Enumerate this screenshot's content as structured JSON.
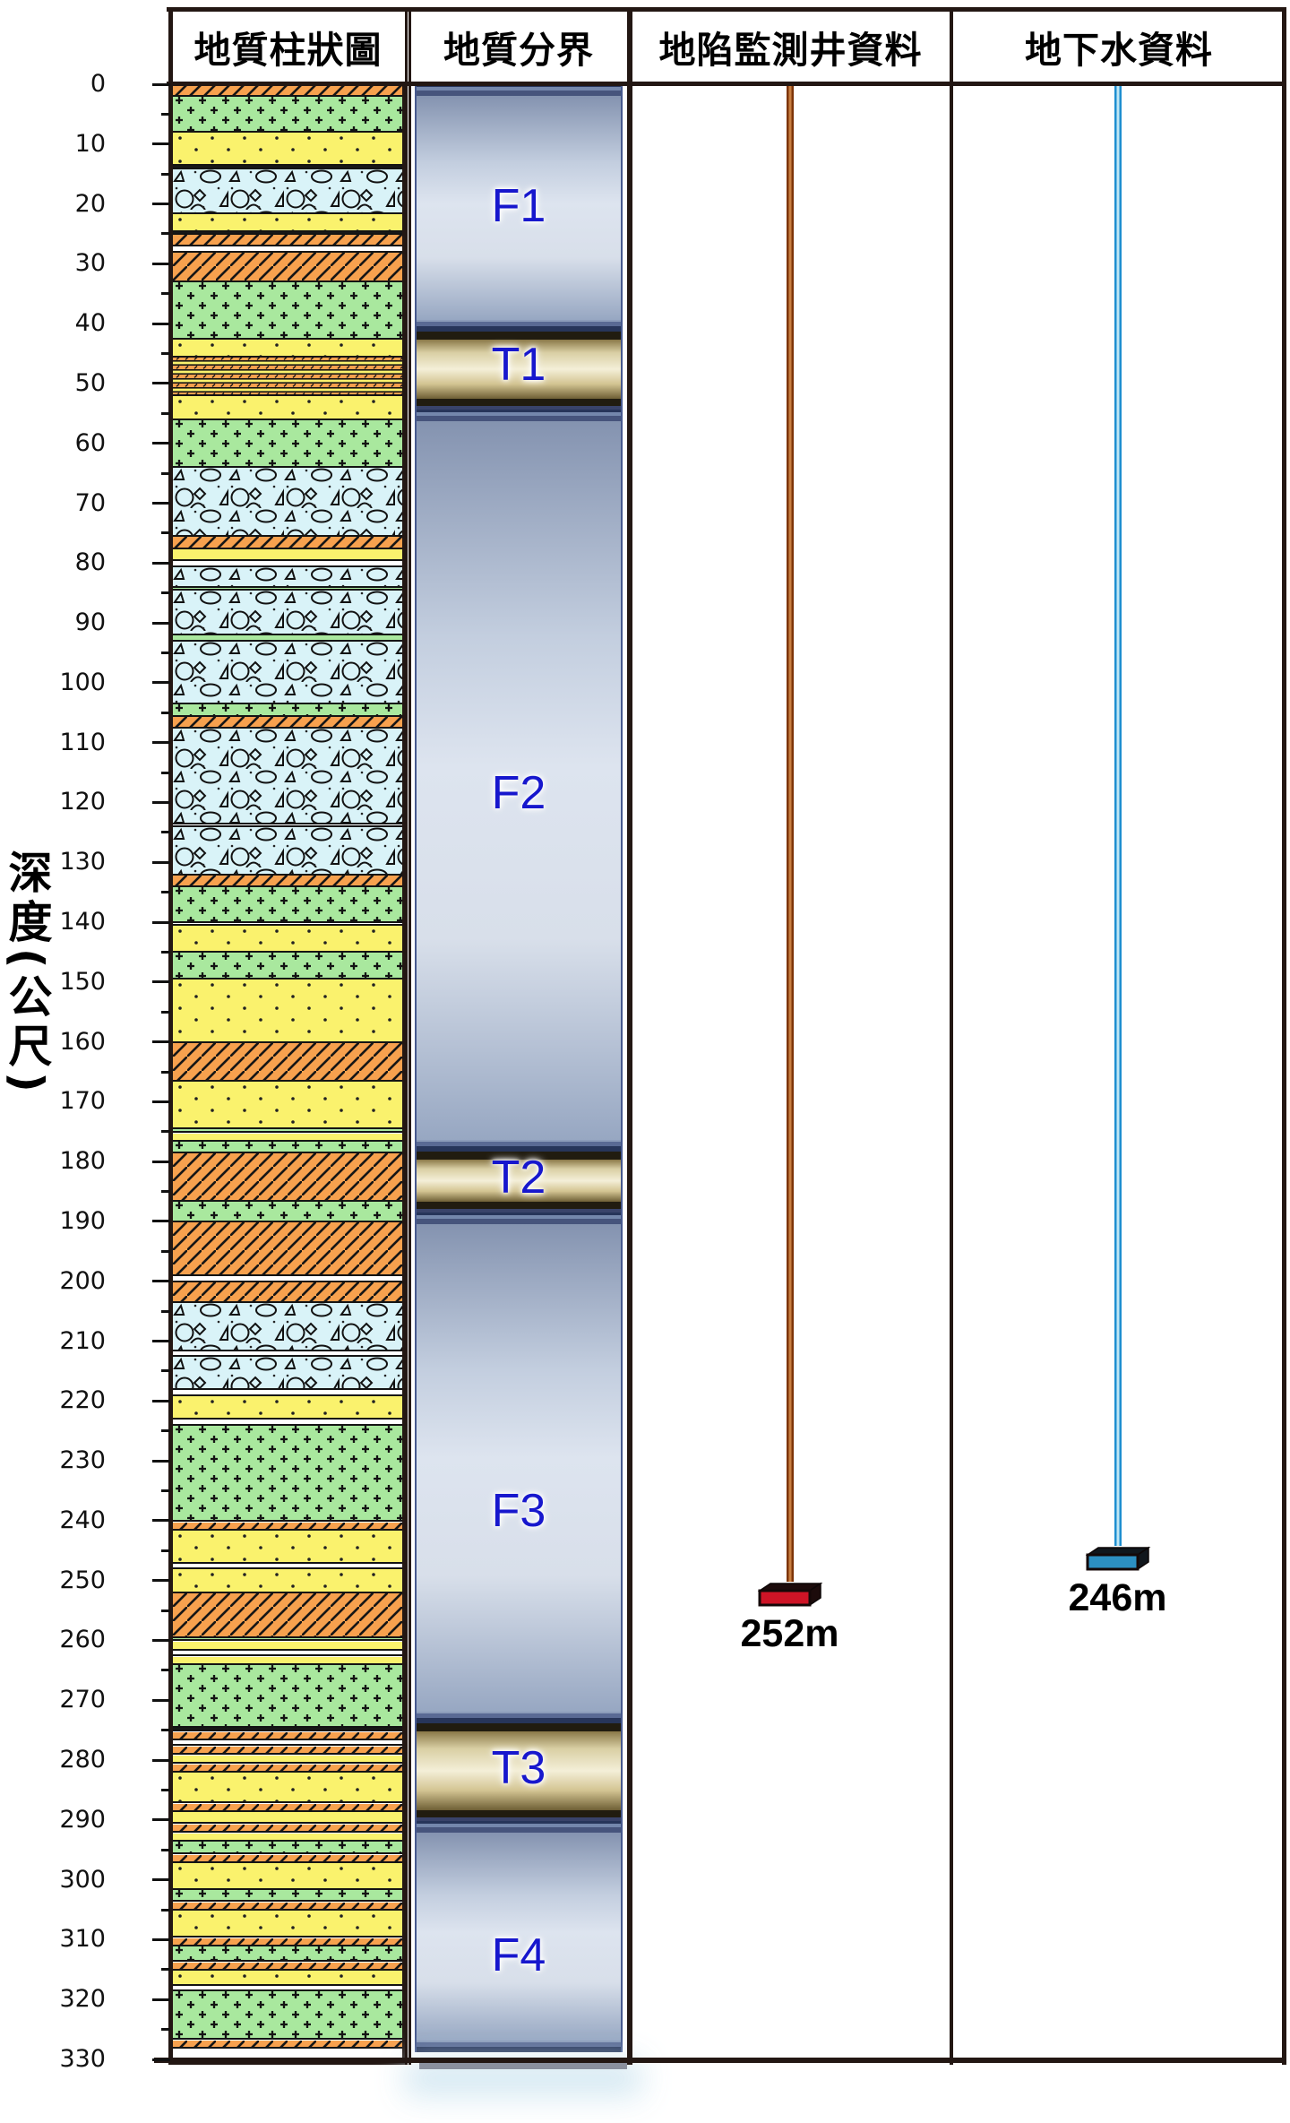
{
  "figure": {
    "kind": "geological-column-with-wells",
    "depth_top_m": 0,
    "depth_bottom_m": 330
  },
  "header": {
    "cells": [
      {
        "label": "地質柱狀圖"
      },
      {
        "label": "地質分界"
      },
      {
        "label": "地陷監測井資料"
      },
      {
        "label": "地下水資料"
      }
    ]
  },
  "axis": {
    "title": "深度(公尺)",
    "min": 0,
    "max": 330,
    "major_step": 10,
    "minor_step": 5,
    "tick_labels": [
      "0",
      "10",
      "20",
      "30",
      "40",
      "50",
      "60",
      "70",
      "80",
      "90",
      "100",
      "110",
      "120",
      "130",
      "140",
      "150",
      "160",
      "170",
      "180",
      "190",
      "200",
      "210",
      "220",
      "230",
      "240",
      "250",
      "260",
      "270",
      "280",
      "290",
      "300",
      "310",
      "320",
      "330"
    ]
  },
  "lithology": {
    "pattern_types": {
      "orange": "orange-diagonal-hatch",
      "green": "green-plus-marks",
      "ydots": "yellow-dotted-sand",
      "yellow": "yellow-plain",
      "gravel": "pale-blue-gravel-cobbles",
      "interbed": "thin-orange-yellow-interbeds",
      "dark": "black-line-bed",
      "empty": "blank"
    },
    "layers": [
      [
        0,
        2,
        "orange"
      ],
      [
        2,
        8,
        "green"
      ],
      [
        8,
        13.5,
        "ydots"
      ],
      [
        13.5,
        14,
        "dark"
      ],
      [
        14,
        21.5,
        "gravel"
      ],
      [
        21.5,
        24.5,
        "ydots"
      ],
      [
        24.5,
        25,
        "dark"
      ],
      [
        25,
        27,
        "orange"
      ],
      [
        27,
        28,
        "yellow"
      ],
      [
        28,
        33,
        "orange"
      ],
      [
        33,
        42.5,
        "green"
      ],
      [
        42.5,
        45.5,
        "ydots"
      ],
      [
        45.5,
        52,
        "interbed"
      ],
      [
        52,
        56,
        "ydots"
      ],
      [
        56,
        64,
        "green"
      ],
      [
        64,
        75.5,
        "gravel"
      ],
      [
        75.5,
        77.5,
        "orange"
      ],
      [
        77.5,
        79.5,
        "yellow"
      ],
      [
        79.5,
        80.5,
        "orange"
      ],
      [
        80.5,
        84,
        "gravel"
      ],
      [
        84,
        84.5,
        "green"
      ],
      [
        84.5,
        92,
        "gravel"
      ],
      [
        92,
        93,
        "green"
      ],
      [
        93,
        103.5,
        "gravel"
      ],
      [
        103.5,
        105.5,
        "green"
      ],
      [
        105.5,
        107.5,
        "orange"
      ],
      [
        107.5,
        123.5,
        "gravel"
      ],
      [
        123.5,
        124,
        "orange"
      ],
      [
        124,
        132,
        "gravel"
      ],
      [
        132,
        134,
        "orange"
      ],
      [
        134,
        140,
        "green"
      ],
      [
        140,
        140.5,
        "orange"
      ],
      [
        140.5,
        145,
        "ydots"
      ],
      [
        145,
        149.5,
        "green"
      ],
      [
        149.5,
        160,
        "ydots"
      ],
      [
        160,
        166.5,
        "orange"
      ],
      [
        166.5,
        174.5,
        "ydots"
      ],
      [
        174.5,
        175,
        "green"
      ],
      [
        175,
        176.5,
        "yellow"
      ],
      [
        176.5,
        178.5,
        "green"
      ],
      [
        178.5,
        186.5,
        "orange"
      ],
      [
        186.5,
        190,
        "green"
      ],
      [
        190,
        199,
        "orange"
      ],
      [
        199,
        200,
        "yellow"
      ],
      [
        200,
        203.5,
        "orange"
      ],
      [
        203.5,
        211.5,
        "gravel"
      ],
      [
        211.5,
        212.5,
        "yellow"
      ],
      [
        212.5,
        218,
        "gravel"
      ],
      [
        218,
        219,
        "orange"
      ],
      [
        219,
        223,
        "ydots"
      ],
      [
        223,
        224,
        "orange"
      ],
      [
        224,
        240,
        "green"
      ],
      [
        240,
        241.5,
        "orange"
      ],
      [
        241.5,
        247,
        "ydots"
      ],
      [
        247,
        248,
        "orange"
      ],
      [
        248,
        252,
        "ydots"
      ],
      [
        252,
        259.5,
        "orange"
      ],
      [
        259.5,
        260,
        "green"
      ],
      [
        260,
        261.5,
        "yellow"
      ],
      [
        261.5,
        262.5,
        "interbed"
      ],
      [
        262.5,
        264,
        "yellow"
      ],
      [
        264,
        274.5,
        "green"
      ],
      [
        274.5,
        275,
        "dark"
      ],
      [
        275,
        276.5,
        "orange"
      ],
      [
        276.5,
        277.5,
        "yellow"
      ],
      [
        277.5,
        279,
        "orange"
      ],
      [
        279,
        280.5,
        "yellow"
      ],
      [
        280.5,
        282,
        "orange"
      ],
      [
        282,
        287,
        "ydots"
      ],
      [
        287,
        288.5,
        "orange"
      ],
      [
        288.5,
        290.5,
        "yellow"
      ],
      [
        290.5,
        292,
        "orange"
      ],
      [
        292,
        293.5,
        "yellow"
      ],
      [
        293.5,
        295.5,
        "green"
      ],
      [
        295.5,
        297,
        "orange"
      ],
      [
        297,
        301.5,
        "ydots"
      ],
      [
        301.5,
        303.5,
        "green"
      ],
      [
        303.5,
        305,
        "orange"
      ],
      [
        305,
        309.5,
        "ydots"
      ],
      [
        309.5,
        311,
        "orange"
      ],
      [
        311,
        313.5,
        "green"
      ],
      [
        313.5,
        315,
        "orange"
      ],
      [
        315,
        317.5,
        "ydots"
      ],
      [
        317.5,
        318.5,
        "orange"
      ],
      [
        318.5,
        326.5,
        "green"
      ],
      [
        326.5,
        328,
        "orange"
      ],
      [
        328,
        330,
        "empty"
      ]
    ]
  },
  "zones": [
    {
      "id": "F1",
      "from_m": 0,
      "to_m": 41.3,
      "kind": "F",
      "label_at_m": 21
    },
    {
      "id": "T1",
      "from_m": 41.3,
      "to_m": 54.3,
      "kind": "T",
      "label_at_m": 47.5
    },
    {
      "id": "F2",
      "from_m": 54.3,
      "to_m": 178.3,
      "kind": "F",
      "label_at_m": 119
    },
    {
      "id": "T2",
      "from_m": 178.3,
      "to_m": 188.5,
      "kind": "T",
      "label_at_m": 183.2
    },
    {
      "id": "F3",
      "from_m": 188.5,
      "to_m": 273.9,
      "kind": "F",
      "label_at_m": 239
    },
    {
      "id": "T3",
      "from_m": 273.9,
      "to_m": 290.2,
      "kind": "T",
      "label_at_m": 282
    },
    {
      "id": "F4",
      "from_m": 290.2,
      "to_m": 328.8,
      "kind": "F",
      "label_at_m": 313.2
    }
  ],
  "wells": [
    {
      "kind": "subsidence-monitoring-well",
      "column_header": "地陷監測井資料",
      "depth_m": 252,
      "depth_label": "252m",
      "line_color": "#7D3408",
      "line_gap_color": "#C97F42",
      "box_front_color": "#CE1426",
      "box_dark_color": "#1C0B0B"
    },
    {
      "kind": "groundwater-well",
      "column_header": "地下水資料",
      "depth_m": 246,
      "depth_label": "246m",
      "line_color": "#1F8FD0",
      "line_gap_color": "#BFE6F5",
      "box_front_color": "#2C8FC2",
      "box_dark_color": "#10161C"
    }
  ],
  "colors": {
    "table_border": "#231713",
    "layer_line": "#141414",
    "orange_bed": "#F7A14E",
    "green_bed": "#A9E89E",
    "yellow_bed": "#FAF26D",
    "gravel_bed": "#D9F3F8",
    "zone_label_blue": "#1717CD",
    "f_band_light": "#DDE4EF",
    "f_band_dark": "#27355A",
    "t_band_core": "#F4EFD8",
    "t_band_dark": "#211C10"
  }
}
